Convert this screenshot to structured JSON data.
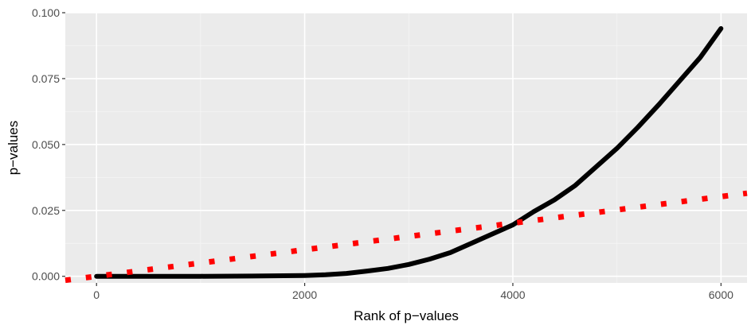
{
  "chart_data": {
    "type": "line",
    "title": "",
    "xlabel": "Rank of p−values",
    "ylabel": "p−values",
    "xlim": [
      -300,
      6250
    ],
    "ylim": [
      -0.0025,
      0.1
    ],
    "x_ticks": [
      0,
      2000,
      4000,
      6000
    ],
    "x_tick_labels": [
      "0",
      "2000",
      "4000",
      "6000"
    ],
    "y_ticks": [
      0,
      0.025,
      0.05,
      0.075,
      0.1
    ],
    "y_tick_labels": [
      "0.000",
      "0.025",
      "0.050",
      "0.075",
      "0.100"
    ],
    "grid": true,
    "legend": "none",
    "series": [
      {
        "style": "solid",
        "color": "#000000",
        "x": [
          0,
          500,
          1000,
          1500,
          2000,
          2200,
          2400,
          2600,
          2800,
          3000,
          3200,
          3400,
          3600,
          3800,
          4000,
          4200,
          4400,
          4600,
          4800,
          5000,
          5200,
          5400,
          5600,
          5800,
          6000
        ],
        "y": [
          0,
          0,
          0,
          0.0001,
          0.0003,
          0.0006,
          0.0011,
          0.002,
          0.003,
          0.0045,
          0.0065,
          0.009,
          0.0125,
          0.016,
          0.0195,
          0.0245,
          0.029,
          0.0345,
          0.0415,
          0.0485,
          0.0565,
          0.065,
          0.074,
          0.083,
          0.094
        ]
      },
      {
        "style": "dotted",
        "color": "#ff0000",
        "x": [
          -300,
          6250
        ],
        "y": [
          -0.0015,
          0.0315
        ]
      }
    ]
  }
}
